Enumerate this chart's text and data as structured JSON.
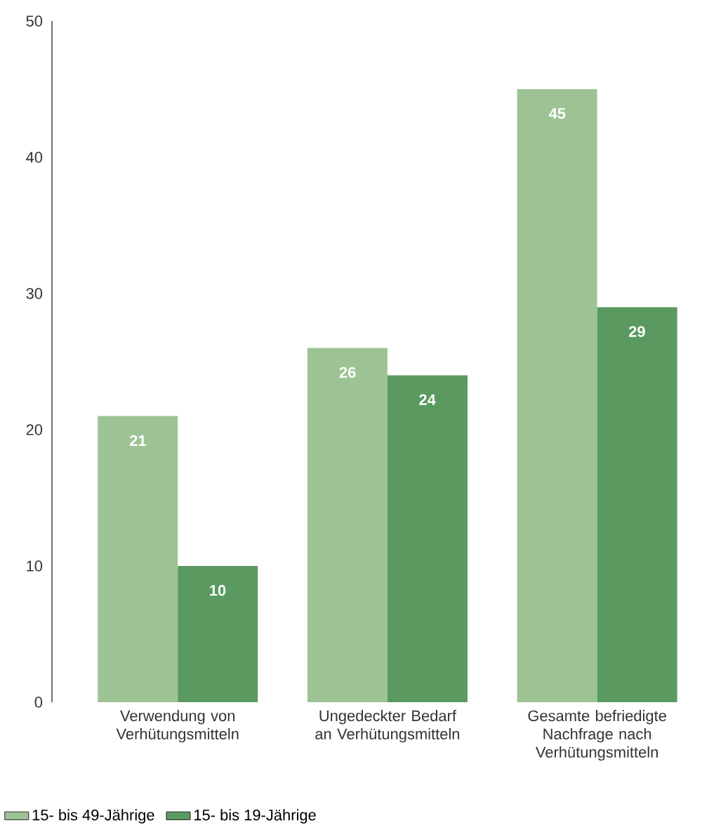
{
  "chart_data": {
    "type": "bar",
    "categories": [
      "Verwendung von Verhütungsmitteln",
      "Ungedeckter Bedarf an Verhütungsmitteln",
      "Gesamte befriedigte Nachfrage nach Verhütungsmitteln"
    ],
    "series": [
      {
        "name": "15- bis 49-Jährige",
        "color": "#9dc394",
        "values": [
          21,
          26,
          45
        ]
      },
      {
        "name": "15- bis 19-Jährige",
        "color": "#5a9960",
        "values": [
          10,
          24,
          29
        ]
      }
    ],
    "ylim": [
      0,
      50
    ],
    "yticks": [
      0,
      10,
      20,
      30,
      40,
      50
    ],
    "data_labels": true,
    "legend": "bottom left",
    "grid": false
  }
}
